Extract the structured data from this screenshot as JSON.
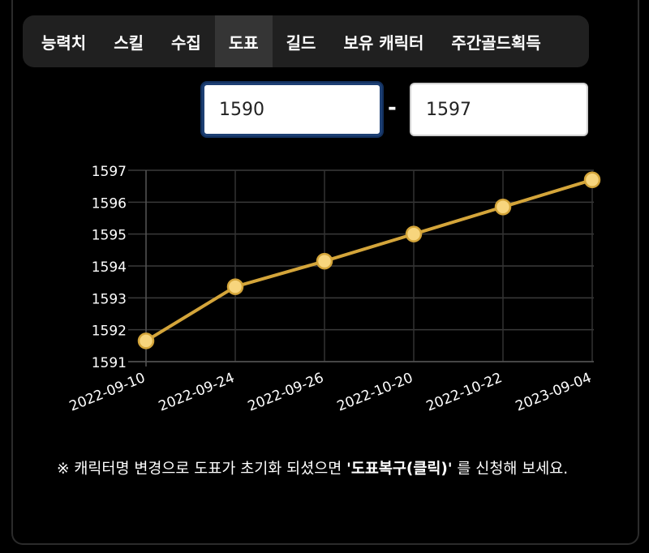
{
  "tabs": [
    {
      "label": "능력치",
      "active": false
    },
    {
      "label": "스킬",
      "active": false
    },
    {
      "label": "수집",
      "active": false
    },
    {
      "label": "도표",
      "active": true
    },
    {
      "label": "길드",
      "active": false
    },
    {
      "label": "보유 캐릭터",
      "active": false
    },
    {
      "label": "주간골드획득",
      "active": false
    }
  ],
  "range": {
    "min": "1590",
    "separator": "-",
    "max": "1597"
  },
  "chart_data": {
    "type": "line",
    "categories": [
      "2022-09-10",
      "2022-09-24",
      "2022-09-26",
      "2022-10-20",
      "2022-10-22",
      "2023-09-04"
    ],
    "values": [
      1591.65,
      1593.35,
      1594.15,
      1595.0,
      1595.85,
      1596.7
    ],
    "yticks": [
      "1591",
      "1592",
      "1593",
      "1594",
      "1595",
      "1596",
      "1597"
    ],
    "ylim": [
      1591,
      1597
    ],
    "grid": true,
    "line_color": "#d4a53a",
    "marker_color": "#f7d57d"
  },
  "note": {
    "prefix": "※ 캐릭터명 변경으로 도표가 초기화 되셨으면 ",
    "link": "'도표복구(클릭)'",
    "suffix": " 를 신청해 보세요."
  }
}
